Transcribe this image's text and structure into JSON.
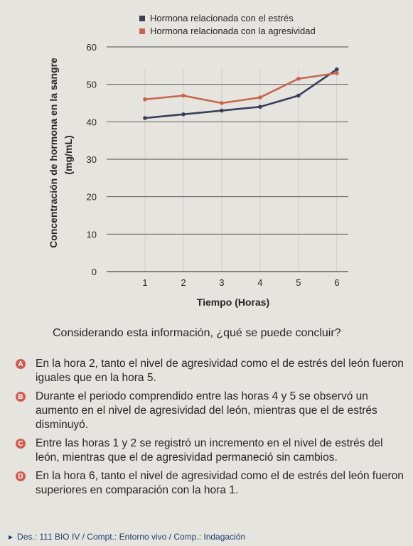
{
  "chart_data": {
    "type": "line",
    "xlabel": "Tiempo (Horas)",
    "ylabel": "Concentración de hormona en la sangre",
    "ylabel_unit": "(mg/mL)",
    "x": [
      1,
      2,
      3,
      4,
      5,
      6
    ],
    "xlim": [
      0,
      6.3
    ],
    "ylim": [
      0,
      60
    ],
    "yticks": [
      0,
      10,
      20,
      30,
      40,
      50,
      60
    ],
    "grid": true,
    "legend_placement": "top",
    "series": [
      {
        "name": "Hormona relacionada con el estrés",
        "color": "#3a3e5c",
        "values": [
          41,
          42,
          43,
          44,
          47,
          54
        ]
      },
      {
        "name": "Hormona relacionada con la agresividad",
        "color": "#c8654e",
        "values": [
          46,
          47,
          45,
          46.5,
          51.5,
          53
        ]
      }
    ]
  },
  "question": "Considerando esta información, ¿qué se puede concluir?",
  "options": [
    {
      "letter": "A",
      "text": "En la hora 2, tanto el nivel de agresividad como el de estrés del león fueron iguales que en la hora 5."
    },
    {
      "letter": "B",
      "text": "Durante el periodo comprendido entre las horas 4 y 5 se observó un aumento en el nivel de agresividad del león, mientras que el de estrés disminuyó."
    },
    {
      "letter": "C",
      "text": "Entre las horas 1 y 2 se registró un incremento en el nivel de estrés del león, mientras que el de agresividad permaneció sin cambios."
    },
    {
      "letter": "D",
      "text": "En la hora 6, tanto el nivel de agresividad como el de estrés del león fueron superiores en comparación con la hora 1."
    }
  ],
  "footer": "Des.: 111 BIO IV / Compt.: Entorno vivo / Comp.: Indagación"
}
